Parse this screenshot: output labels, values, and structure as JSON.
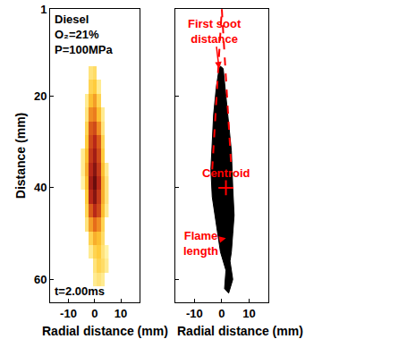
{
  "chart_data": [
    {
      "type": "heatmap",
      "text_top": [
        "Diesel",
        "O₂=21%",
        "P=100MPa"
      ],
      "text_bottom": "t=2.00ms",
      "xlabel": "Radial distance (mm)",
      "ylabel": "Distance (mm)",
      "x": [
        -4.5,
        -3,
        -1.5,
        0,
        1.5,
        3,
        4.5
      ],
      "y": [
        15,
        18,
        21,
        24,
        27,
        30,
        33,
        36,
        39,
        42,
        45,
        48,
        51,
        54,
        57,
        60
      ],
      "z": [
        [
          null,
          null,
          0.2,
          0.25,
          null,
          null,
          null
        ],
        [
          null,
          null,
          0.3,
          0.35,
          0.15,
          null,
          null
        ],
        [
          null,
          0.15,
          0.4,
          0.5,
          0.3,
          null,
          null
        ],
        [
          null,
          0.2,
          0.55,
          0.6,
          0.4,
          0.15,
          null
        ],
        [
          null,
          0.3,
          0.7,
          0.75,
          0.55,
          0.2,
          null
        ],
        [
          null,
          0.35,
          0.75,
          0.85,
          0.7,
          0.3,
          null
        ],
        [
          0.15,
          0.4,
          0.8,
          0.9,
          0.75,
          0.35,
          null
        ],
        [
          0.15,
          0.45,
          0.85,
          0.95,
          0.8,
          0.4,
          0.15
        ],
        [
          0.1,
          0.4,
          0.9,
          1.0,
          0.85,
          0.45,
          0.2
        ],
        [
          null,
          0.35,
          0.85,
          0.95,
          0.8,
          0.45,
          0.2
        ],
        [
          null,
          0.3,
          0.7,
          0.85,
          0.75,
          0.4,
          0.15
        ],
        [
          null,
          0.2,
          0.5,
          0.65,
          0.55,
          0.3,
          null
        ],
        [
          null,
          null,
          0.3,
          0.45,
          0.4,
          0.25,
          null
        ],
        [
          null,
          null,
          0.15,
          0.3,
          0.35,
          0.2,
          0.1
        ],
        [
          null,
          null,
          null,
          0.2,
          0.3,
          0.25,
          0.15
        ],
        [
          null,
          null,
          null,
          0.15,
          0.2,
          0.15,
          null
        ]
      ],
      "xlim": [
        -17,
        17
      ],
      "ylim": [
        65,
        1
      ],
      "xticks": [
        -10,
        0,
        10
      ],
      "yticks": [
        1,
        20,
        40,
        60
      ],
      "tick_labels": true
    },
    {
      "type": "outline",
      "xlabel": "Radial distance (mm)",
      "color": "#000000",
      "outline": {
        "x": [
          -0.5,
          0.5,
          1.5,
          2.5,
          3.5,
          4,
          4.5,
          4,
          3.5,
          3,
          4,
          2.5,
          1,
          1.5,
          0.5,
          -0.5,
          -1.5,
          -2.5,
          -3.5,
          -4,
          -3.5,
          -3,
          -2,
          -1,
          -0.5
        ],
        "y": [
          13.5,
          14,
          20,
          26,
          32,
          40,
          46,
          50,
          54,
          56,
          60,
          63,
          62,
          58,
          56,
          54,
          50,
          46,
          42,
          36,
          30,
          24,
          18,
          14,
          13.5
        ]
      },
      "cone": {
        "x": [
          -3.5,
          0,
          3.5
        ],
        "y": [
          36,
          1,
          36
        ],
        "color": "#ff0000",
        "line_style": "dashed"
      },
      "centroid": {
        "x": 1.5,
        "y": 40,
        "label": "Centroid",
        "marker": "cross",
        "color": "#ff0000"
      },
      "annotations": [
        {
          "text": "First soot distance",
          "x": -1,
          "y": 14,
          "color": "#ff0000"
        },
        {
          "text": "Flame length",
          "x": 1.5,
          "y": 51,
          "color": "#ff0000"
        }
      ],
      "xlim": [
        -17,
        17
      ],
      "ylim": [
        65,
        1
      ],
      "xticks": [
        -10,
        0,
        10
      ],
      "yticks": [
        1,
        20,
        40,
        60
      ],
      "tick_labels": "x"
    }
  ]
}
